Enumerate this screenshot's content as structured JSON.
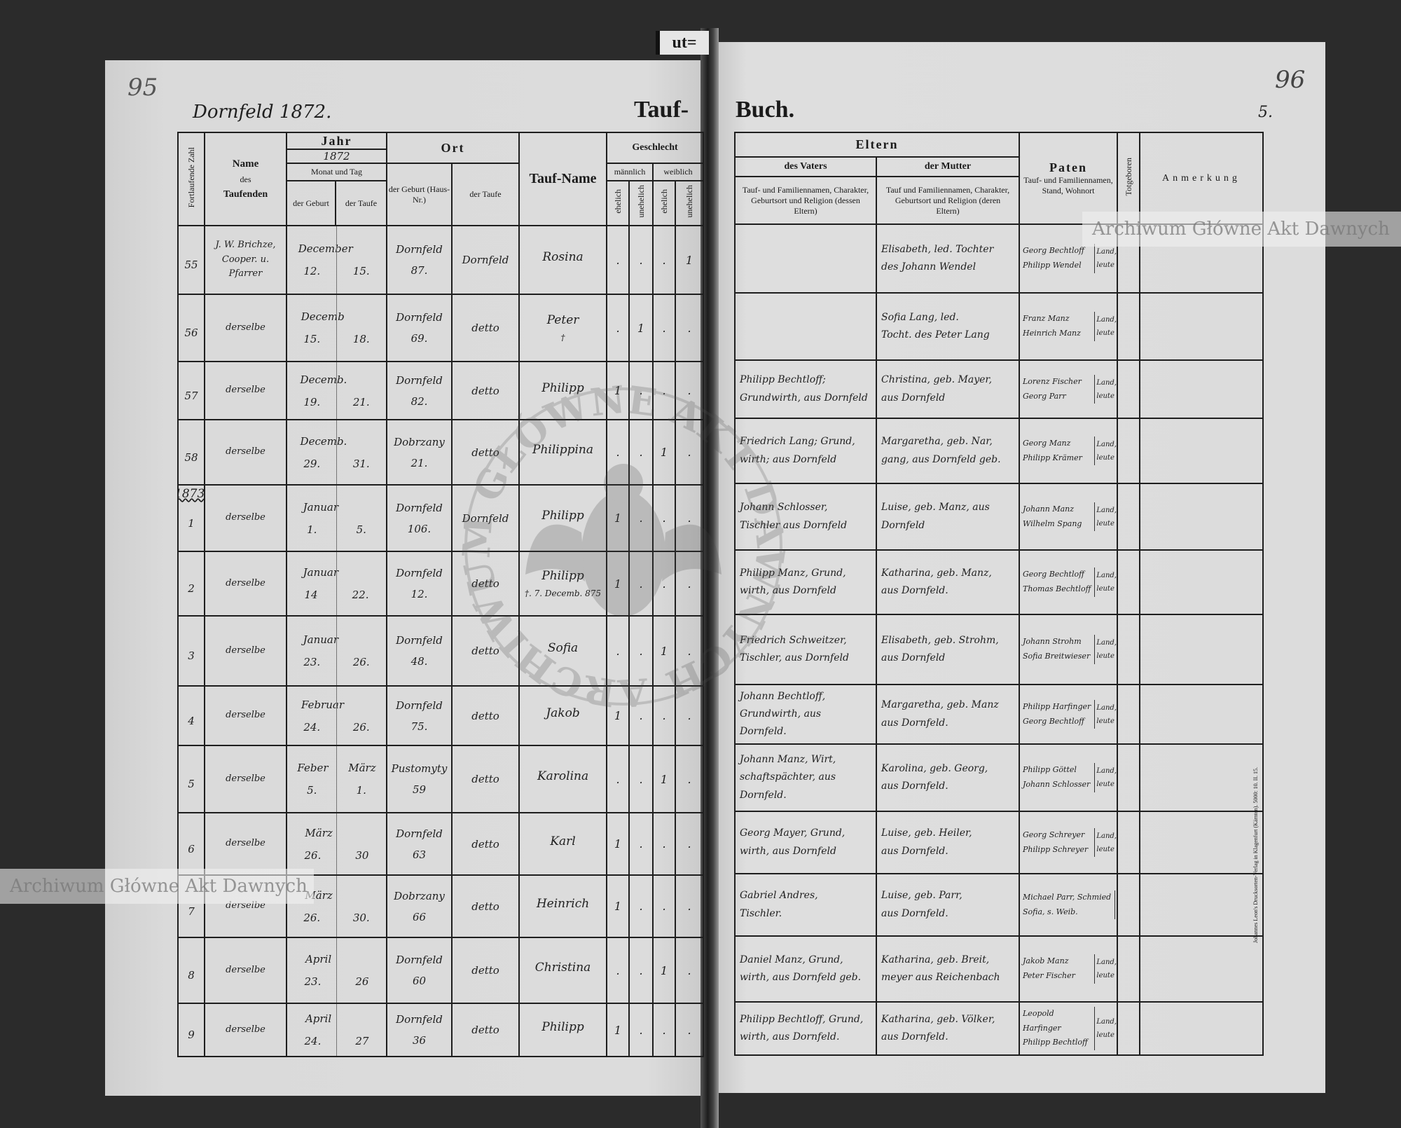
{
  "document": {
    "tab_label": "ut=",
    "left_page_number": "95",
    "right_page_number": "96",
    "right_sheet_mark": "5.",
    "parish_year": "Dornfeld 1872.",
    "title_left": "Tauf-",
    "title_right": "Buch.",
    "printer_imprint": "Johannes Leon's Drucksorten-Verlag in Klagenfurt (Kärnten). 5000: 10. II. 15.",
    "watermark_text": "Archiwum Główne Akt Dawnych",
    "stamp_text": "ARCHIWUM GŁÓWNE AKT DAWNYCH"
  },
  "headers": {
    "serial": "Fortlaufende Zahl",
    "name_title": "Name",
    "name_des": "des",
    "name_sub": "Taufenden",
    "year_title": "Jahr",
    "year_value": "1872",
    "month_day": "Monat und Tag",
    "birth": "der Geburt",
    "baptism": "der Taufe",
    "place_title": "Ort",
    "place_birth": "der Geburt (Haus-Nr.)",
    "place_baptism": "der Taufe",
    "baptismal_name": "Tauf-Name",
    "sex_title": "Geschlecht",
    "male": "männlich",
    "female": "weiblich",
    "legit": "ehelich",
    "illegit": "unehelich",
    "parents_title": "Eltern",
    "father": "des Vaters",
    "father_desc": "Tauf- und Familiennamen, Charakter, Geburtsort und Religion (dessen Eltern)",
    "mother": "der Mutter",
    "mother_desc": "Tauf und Familiennamen, Charakter, Geburtsort und Religion (deren Eltern)",
    "godparents_title": "Paten",
    "godparents_desc": "Tauf- und Familiennamen, Stand, Wohnort",
    "stillborn": "Totgeboren",
    "remarks": "Anmerkung"
  },
  "entries": [
    {
      "number": "55",
      "year_note": "",
      "baptizer": "J. W. Brichze,\nCooper. u.\nPfarrer",
      "month": "December",
      "month2": "",
      "birth_day": "12.",
      "baptism_day": "15.",
      "birth_place": "Dornfeld",
      "house_no": "87.",
      "baptism_place": "Dornfeld",
      "tauf_name": "Rosina",
      "name_note": "",
      "sex": [
        ".",
        ".",
        ".",
        "1"
      ],
      "father": "",
      "mother": "Elisabeth, led. Tochter\ndes Johann Wendel",
      "godparents": "Georg Bechtloff\nPhilipp Wendel",
      "godparent_status": "Land,\nleute"
    },
    {
      "number": "56",
      "year_note": "",
      "baptizer": "derselbe",
      "month": "Decemb",
      "month2": "",
      "birth_day": "15.",
      "baptism_day": "18.",
      "birth_place": "Dornfeld",
      "house_no": "69.",
      "baptism_place": "detto",
      "tauf_name": "Peter",
      "name_note": "†",
      "sex": [
        ".",
        "1",
        ".",
        "."
      ],
      "father": "",
      "mother": "Sofia Lang, led.\nTocht. des Peter Lang",
      "godparents": "Franz Manz\nHeinrich Manz",
      "godparent_status": "Land,\nleute"
    },
    {
      "number": "57",
      "year_note": "",
      "baptizer": "derselbe",
      "month": "Decemb.",
      "month2": "",
      "birth_day": "19.",
      "baptism_day": "21.",
      "birth_place": "Dornfeld",
      "house_no": "82.",
      "baptism_place": "detto",
      "tauf_name": "Philipp",
      "name_note": "",
      "sex": [
        "1",
        ".",
        ".",
        "."
      ],
      "father": "Philipp Bechtloff;\nGrundwirth, aus Dornfeld",
      "mother": "Christina, geb. Mayer,\naus Dornfeld",
      "godparents": "Lorenz Fischer\nGeorg Parr",
      "godparent_status": "Land,\nleute"
    },
    {
      "number": "58",
      "year_note": "",
      "baptizer": "derselbe",
      "month": "Decemb.",
      "month2": "",
      "birth_day": "29.",
      "baptism_day": "31.",
      "birth_place": "Dobrzany",
      "house_no": "21.",
      "baptism_place": "detto",
      "tauf_name": "Philippina",
      "name_note": "",
      "sex": [
        ".",
        ".",
        "1",
        "."
      ],
      "father": "Friedrich Lang; Grund,\nwirth; aus Dornfeld",
      "mother": "Margaretha, geb. Nar,\ngang, aus Dornfeld geb.",
      "godparents": "Georg Manz\nPhilipp Krämer",
      "godparent_status": "Land,\nleute"
    },
    {
      "number": "1",
      "year_note": "1873.",
      "baptizer": "derselbe",
      "month": "Januar",
      "month2": "",
      "birth_day": "1.",
      "baptism_day": "5.",
      "birth_place": "Dornfeld",
      "house_no": "106.",
      "baptism_place": "Dornfeld",
      "tauf_name": "Philipp",
      "name_note": "",
      "sex": [
        "1",
        ".",
        ".",
        "."
      ],
      "father": "Johann Schlosser,\nTischler aus Dornfeld",
      "mother": "Luise, geb. Manz, aus\nDornfeld",
      "godparents": "Johann Manz\nWilhelm Spang",
      "godparent_status": "Land,\nleute"
    },
    {
      "number": "2",
      "year_note": "",
      "baptizer": "derselbe",
      "month": "Januar",
      "month2": "",
      "birth_day": "14",
      "baptism_day": "22.",
      "birth_place": "Dornfeld",
      "house_no": "12.",
      "baptism_place": "detto",
      "tauf_name": "Philipp",
      "name_note": "†. 7. Decemb. 875",
      "sex": [
        "1",
        ".",
        ".",
        "."
      ],
      "father": "Philipp Manz, Grund,\nwirth, aus Dornfeld",
      "mother": "Katharina, geb. Manz,\naus Dornfeld.",
      "godparents": "Georg Bechtloff\nThomas Bechtloff",
      "godparent_status": "Land,\nleute"
    },
    {
      "number": "3",
      "year_note": "",
      "baptizer": "derselbe",
      "month": "Januar",
      "month2": "",
      "birth_day": "23.",
      "baptism_day": "26.",
      "birth_place": "Dornfeld",
      "house_no": "48.",
      "baptism_place": "detto",
      "tauf_name": "Sofia",
      "name_note": "",
      "sex": [
        ".",
        ".",
        "1",
        "."
      ],
      "father": "Friedrich Schweitzer,\nTischler, aus Dornfeld",
      "mother": "Elisabeth, geb. Strohm,\naus Dornfeld",
      "godparents": "Johann Strohm\nSofia Breitwieser",
      "godparent_status": "Land,\nleute"
    },
    {
      "number": "4",
      "year_note": "",
      "baptizer": "derselbe",
      "month": "Februar",
      "month2": "",
      "birth_day": "24.",
      "baptism_day": "26.",
      "birth_place": "Dornfeld",
      "house_no": "75.",
      "baptism_place": "detto",
      "tauf_name": "Jakob",
      "name_note": "",
      "sex": [
        "1",
        ".",
        ".",
        "."
      ],
      "father": "Johann Bechtloff,\nGrundwirth, aus\nDornfeld.",
      "mother": "Margaretha, geb. Manz\naus Dornfeld.",
      "godparents": "Philipp Harfinger\nGeorg Bechtloff",
      "godparent_status": "Land,\nleute"
    },
    {
      "number": "5",
      "year_note": "",
      "baptizer": "derselbe",
      "month": "Feber",
      "month2": "März",
      "birth_day": "5.",
      "baptism_day": "1.",
      "birth_place": "Pustomyty",
      "house_no": "59",
      "baptism_place": "detto",
      "tauf_name": "Karolina",
      "name_note": "",
      "sex": [
        ".",
        ".",
        "1",
        "."
      ],
      "father": "Johann Manz, Wirt,\nschaftspächter, aus\nDornfeld.",
      "mother": "Karolina, geb. Georg,\naus Dornfeld.",
      "godparents": "Philipp Göttel\nJohann Schlosser",
      "godparent_status": "Land,\nleute"
    },
    {
      "number": "6",
      "year_note": "",
      "baptizer": "derselbe",
      "month": "März",
      "month2": "",
      "birth_day": "26.",
      "baptism_day": "30",
      "birth_place": "Dornfeld",
      "house_no": "63",
      "baptism_place": "detto",
      "tauf_name": "Karl",
      "name_note": "",
      "sex": [
        "1",
        ".",
        ".",
        "."
      ],
      "father": "Georg Mayer, Grund,\nwirth, aus Dornfeld",
      "mother": "Luise, geb. Heiler,\naus Dornfeld.",
      "godparents": "Georg Schreyer\nPhilipp Schreyer",
      "godparent_status": "Land,\nleute"
    },
    {
      "number": "7",
      "year_note": "",
      "baptizer": "derselbe",
      "month": "März",
      "month2": "",
      "birth_day": "26.",
      "baptism_day": "30.",
      "birth_place": "Dobrzany",
      "house_no": "66",
      "baptism_place": "detto",
      "tauf_name": "Heinrich",
      "name_note": "",
      "sex": [
        "1",
        ".",
        ".",
        "."
      ],
      "father": "Gabriel Andres,\nTischler.",
      "mother": "Luise, geb. Parr,\naus Dornfeld.",
      "godparents": "Michael Parr, Schmied\nSofia, s. Weib.",
      "godparent_status": ""
    },
    {
      "number": "8",
      "year_note": "",
      "baptizer": "derselbe",
      "month": "April",
      "month2": "",
      "birth_day": "23.",
      "baptism_day": "26",
      "birth_place": "Dornfeld",
      "house_no": "60",
      "baptism_place": "detto",
      "tauf_name": "Christina",
      "name_note": "",
      "sex": [
        ".",
        ".",
        "1",
        "."
      ],
      "father": "Daniel Manz, Grund,\nwirth, aus Dornfeld geb.",
      "mother": "Katharina, geb. Breit,\nmeyer aus Reichenbach",
      "godparents": "Jakob Manz\nPeter Fischer",
      "godparent_status": "Land,\nleute"
    },
    {
      "number": "9",
      "year_note": "",
      "baptizer": "derselbe",
      "month": "April",
      "month2": "",
      "birth_day": "24.",
      "baptism_day": "27",
      "birth_place": "Dornfeld",
      "house_no": "36",
      "baptism_place": "detto",
      "tauf_name": "Philipp",
      "name_note": "",
      "sex": [
        "1",
        ".",
        ".",
        "."
      ],
      "father": "Philipp Bechtloff, Grund,\nwirth, aus Dornfeld.",
      "mother": "Katharina, geb. Völker,\naus Dornfeld.",
      "godparents": "Leopold Harfinger\nPhilipp Bechtloff",
      "godparent_status": "Land,\nleute"
    }
  ]
}
